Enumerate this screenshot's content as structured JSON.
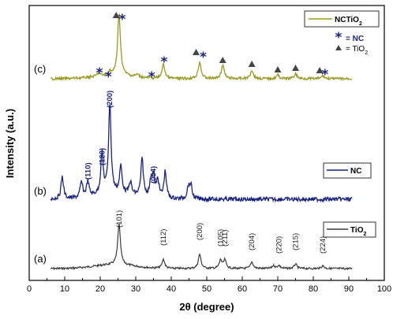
{
  "chart_data": {
    "type": "line",
    "title": "",
    "xlabel": "2θ (degree)",
    "ylabel": "Intensity (a.u.)",
    "xlim": [
      0,
      100
    ],
    "xticks": [
      "0",
      "10",
      "20",
      "30",
      "40",
      "50",
      "60",
      "70",
      "80",
      "90",
      "100"
    ],
    "grid": false,
    "colors": {
      "tio2": "#3a3a3a",
      "nc": "#1a237e",
      "nctio2": "#9a9a22"
    },
    "series": [
      {
        "name": "TiO2",
        "trace_label": "(a)",
        "legend": "TiO2",
        "x_range": [
          6,
          91
        ],
        "peaks": [
          [
            25.3,
            1.0
          ],
          [
            37.8,
            0.22
          ],
          [
            48.0,
            0.35
          ],
          [
            53.9,
            0.2
          ],
          [
            55.1,
            0.2
          ],
          [
            62.7,
            0.16
          ],
          [
            68.8,
            0.07
          ],
          [
            70.3,
            0.08
          ],
          [
            75.0,
            0.11
          ],
          [
            82.7,
            0.07
          ]
        ],
        "hkl": [
          {
            "x": 25.3,
            "label": "(101)"
          },
          {
            "x": 37.8,
            "label": "(112)"
          },
          {
            "x": 48.0,
            "label": "(200)"
          },
          {
            "x": 53.9,
            "label": "(105)"
          },
          {
            "x": 55.1,
            "label": "(211)"
          },
          {
            "x": 62.7,
            "label": "(204)"
          },
          {
            "x": 70.3,
            "label": "(220)"
          },
          {
            "x": 75.0,
            "label": "(215)"
          },
          {
            "x": 82.7,
            "label": "(224)"
          }
        ]
      },
      {
        "name": "NC",
        "trace_label": "(b)",
        "legend": "NC",
        "x_range": [
          6,
          91
        ],
        "peaks": [
          [
            9.3,
            0.25
          ],
          [
            14.7,
            0.17
          ],
          [
            16.5,
            0.17
          ],
          [
            20.5,
            0.45
          ],
          [
            22.7,
            1.0
          ],
          [
            25.8,
            0.3
          ],
          [
            28.5,
            0.14
          ],
          [
            31.8,
            0.42
          ],
          [
            34.3,
            0.18
          ],
          [
            35.0,
            0.22
          ],
          [
            36.2,
            0.2
          ],
          [
            38.3,
            0.3
          ],
          [
            44.8,
            0.12
          ],
          [
            45.5,
            0.15
          ]
        ],
        "hkl": [
          {
            "x": 16.5,
            "label": "(110)"
          },
          {
            "x": 20.5,
            "label": "(120)"
          },
          {
            "x": 22.7,
            "label": "(200)"
          },
          {
            "x": 35.0,
            "label": "(004)"
          }
        ]
      },
      {
        "name": "NCTiO2",
        "trace_label": "(c)",
        "legend": "NCTiO2",
        "x_range": [
          6,
          91
        ],
        "peaks": [
          [
            19.5,
            0.05
          ],
          [
            22.7,
            0.06
          ],
          [
            25.3,
            1.0
          ],
          [
            30.5,
            0.04
          ],
          [
            37.8,
            0.23
          ],
          [
            48.0,
            0.27
          ],
          [
            54.5,
            0.22
          ],
          [
            62.7,
            0.14
          ],
          [
            70.0,
            0.06
          ],
          [
            75.0,
            0.08
          ],
          [
            82.7,
            0.05
          ]
        ],
        "markers": [
          {
            "x": 19.8,
            "type": "star"
          },
          {
            "x": 22.3,
            "type": "star"
          },
          {
            "x": 24.5,
            "type": "triangle"
          },
          {
            "x": 26.2,
            "type": "star"
          },
          {
            "x": 34.5,
            "type": "star"
          },
          {
            "x": 38.0,
            "type": "star"
          },
          {
            "x": 47.0,
            "type": "triangle"
          },
          {
            "x": 49.0,
            "type": "star"
          },
          {
            "x": 54.5,
            "type": "triangle"
          },
          {
            "x": 62.7,
            "type": "triangle"
          },
          {
            "x": 70.0,
            "type": "triangle"
          },
          {
            "x": 75.0,
            "type": "triangle"
          },
          {
            "x": 81.8,
            "type": "triangle"
          },
          {
            "x": 83.3,
            "type": "star"
          }
        ]
      }
    ],
    "marker_legend": [
      {
        "symbol": "star",
        "text": "= NC"
      },
      {
        "symbol": "triangle",
        "text": "= TiO2"
      }
    ]
  }
}
